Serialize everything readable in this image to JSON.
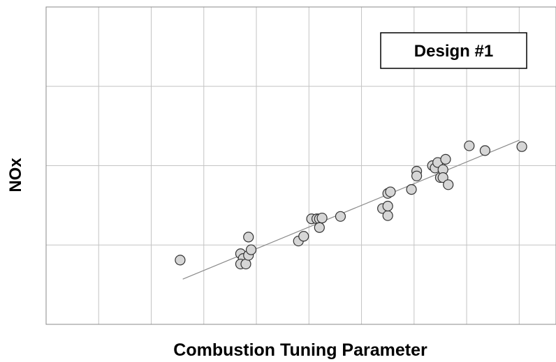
{
  "chart_data": {
    "type": "scatter",
    "title": "",
    "xlabel": "Combustion Tuning Parameter",
    "ylabel": "NOx",
    "xlim": [
      0,
      9.7
    ],
    "ylim": [
      0,
      4
    ],
    "grid": true,
    "x_ticks": [
      1,
      2,
      3,
      4,
      5,
      6,
      7,
      8,
      9
    ],
    "y_ticks": [
      1,
      2,
      3
    ],
    "annotation": "Design #1",
    "colors": {
      "marker_fill": "#d6d6d6",
      "marker_stroke": "#333333",
      "grid": "#c4c4c4",
      "axes": "#888888",
      "trendline": "#8a8a8a"
    },
    "trendline": {
      "x": [
        2.6,
        9.0
      ],
      "y": [
        0.57,
        2.32
      ]
    },
    "series": [
      {
        "name": "",
        "points": [
          {
            "x": 2.55,
            "y": 0.81
          },
          {
            "x": 3.7,
            "y": 0.89
          },
          {
            "x": 3.75,
            "y": 0.83
          },
          {
            "x": 3.7,
            "y": 0.76
          },
          {
            "x": 3.8,
            "y": 0.76
          },
          {
            "x": 3.85,
            "y": 0.87
          },
          {
            "x": 3.9,
            "y": 0.94
          },
          {
            "x": 3.85,
            "y": 1.1
          },
          {
            "x": 4.8,
            "y": 1.05
          },
          {
            "x": 4.9,
            "y": 1.11
          },
          {
            "x": 5.05,
            "y": 1.33
          },
          {
            "x": 5.15,
            "y": 1.33
          },
          {
            "x": 5.2,
            "y": 1.33
          },
          {
            "x": 5.2,
            "y": 1.22
          },
          {
            "x": 5.25,
            "y": 1.34
          },
          {
            "x": 5.6,
            "y": 1.36
          },
          {
            "x": 6.4,
            "y": 1.46
          },
          {
            "x": 6.5,
            "y": 1.37
          },
          {
            "x": 6.5,
            "y": 1.49
          },
          {
            "x": 6.5,
            "y": 1.65
          },
          {
            "x": 6.55,
            "y": 1.67
          },
          {
            "x": 6.95,
            "y": 1.7
          },
          {
            "x": 7.05,
            "y": 1.93
          },
          {
            "x": 7.05,
            "y": 1.87
          },
          {
            "x": 7.35,
            "y": 2.0
          },
          {
            "x": 7.4,
            "y": 1.97
          },
          {
            "x": 7.45,
            "y": 2.04
          },
          {
            "x": 7.5,
            "y": 1.85
          },
          {
            "x": 7.55,
            "y": 1.95
          },
          {
            "x": 7.55,
            "y": 1.85
          },
          {
            "x": 7.6,
            "y": 2.08
          },
          {
            "x": 7.65,
            "y": 1.76
          },
          {
            "x": 8.05,
            "y": 2.25
          },
          {
            "x": 8.35,
            "y": 2.19
          },
          {
            "x": 9.05,
            "y": 2.24
          }
        ]
      }
    ]
  }
}
